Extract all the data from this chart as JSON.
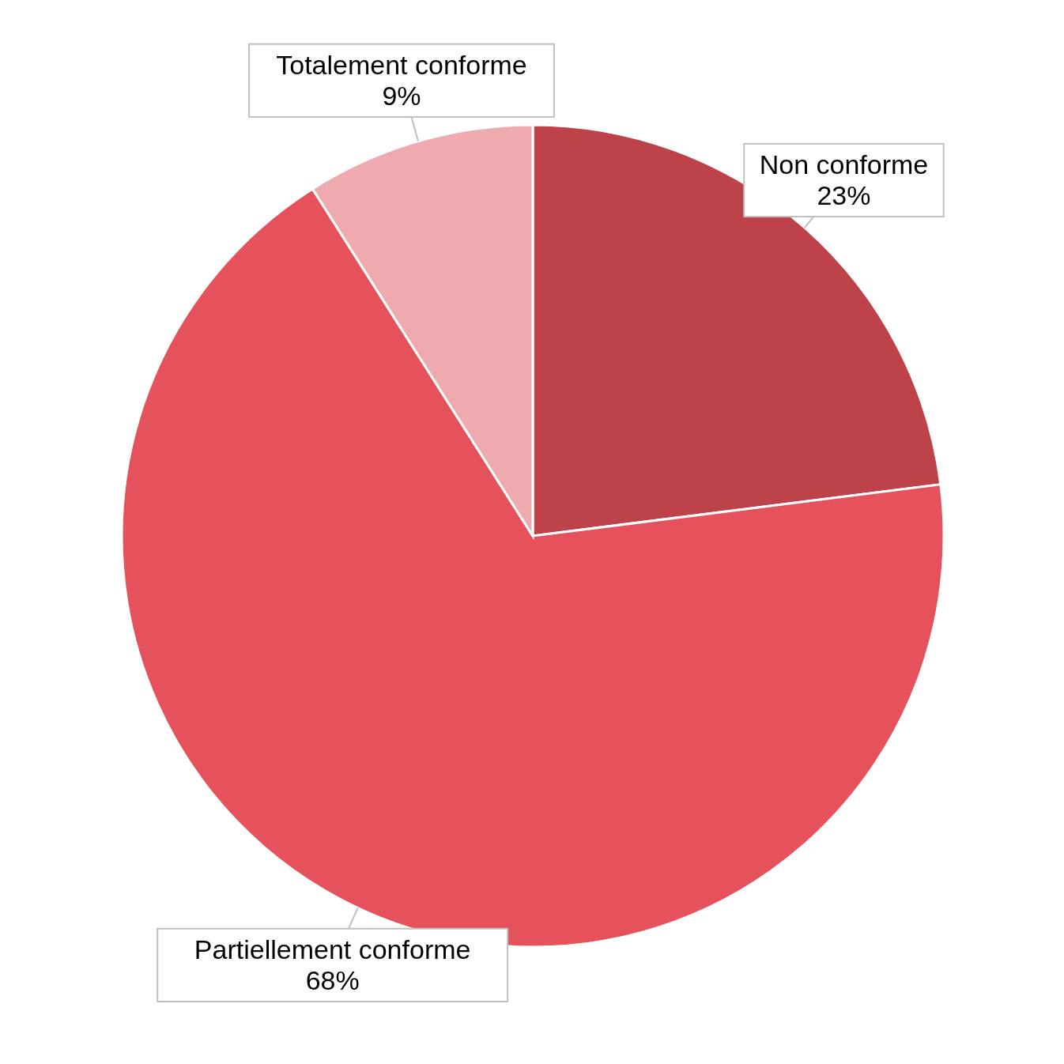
{
  "chart_data": {
    "type": "pie",
    "categories": [
      "Non conforme",
      "Partiellement conforme",
      "Totalement conforme"
    ],
    "values": [
      23,
      68,
      9
    ],
    "value_labels": [
      "23%",
      "68%",
      "9%"
    ],
    "colors": [
      "#be424a",
      "#e5525c",
      "#eeaaae"
    ]
  }
}
